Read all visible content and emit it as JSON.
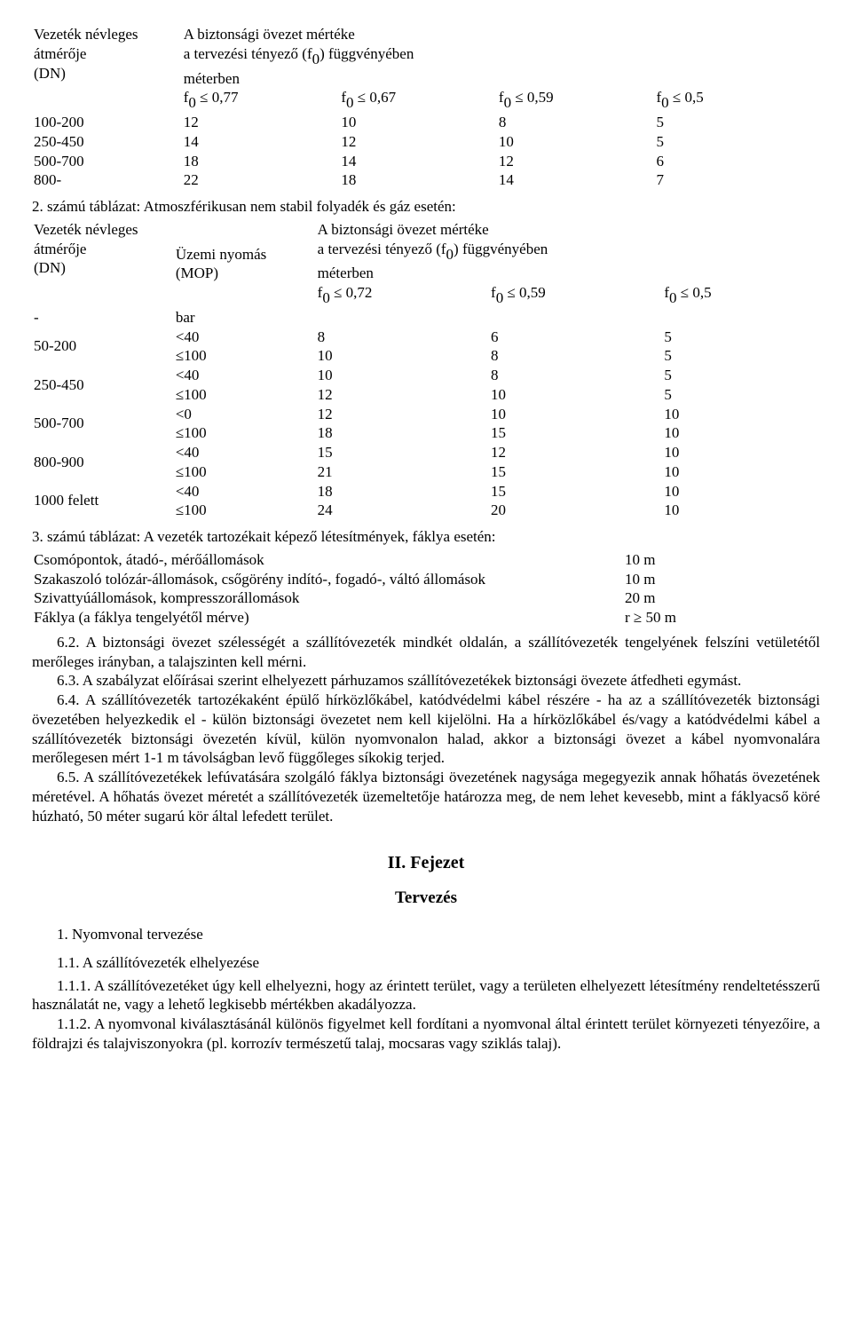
{
  "table1": {
    "header_col1_l1": "Vezeték névleges",
    "header_col1_l2": "átmérője",
    "header_col1_l3": "(DN)",
    "header_right_l1": "A biztonsági övezet mértéke",
    "header_right_l2_a": "a tervezési tényező (f",
    "header_right_l2_b": ") függvényében",
    "header_right_l3": "méterben",
    "colA_a": "f",
    "colA_b": " ≤ 0,77",
    "colB_a": "f",
    "colB_b": " ≤ 0,67",
    "colC_a": "f",
    "colC_b": " ≤ 0,59",
    "colD_a": "f",
    "colD_b": " ≤ 0,5",
    "rows": [
      {
        "dn": "100-200",
        "a": "12",
        "b": "10",
        "c": "8",
        "d": "5"
      },
      {
        "dn": "250-450",
        "a": "14",
        "b": "12",
        "c": "10",
        "d": "5"
      },
      {
        "dn": "500-700",
        "a": "18",
        "b": "14",
        "c": "12",
        "d": "6"
      },
      {
        "dn": "800-",
        "a": "22",
        "b": "18",
        "c": "14",
        "d": "7"
      }
    ]
  },
  "caption2": "2. számú táblázat: Atmoszférikusan nem stabil folyadék és gáz esetén:",
  "table2": {
    "h_col1_l1": "Vezeték névleges",
    "h_col1_l2": "átmérője",
    "h_col1_l3": "(DN)",
    "h_col2_l1": "Üzemi nyomás",
    "h_col2_l2": "(MOP)",
    "h_right_l1": "A biztonsági övezet mértéke",
    "h_right_l2_a": "a tervezési tényező (f",
    "h_right_l2_b": ") függvényében",
    "h_right_l3": "méterben",
    "unit_dash": "-",
    "unit_bar": "bar",
    "cA_a": "f",
    "cA_b": " ≤ 0,72",
    "cB_a": "f",
    "cB_b": " ≤ 0,59",
    "cC_a": "f",
    "cC_b": " ≤ 0,5",
    "rows": [
      {
        "dn": "50-200",
        "p1": "<40",
        "a1": "8",
        "b1": "6",
        "c1": "5",
        "p2": "≤100",
        "a2": "10",
        "b2": "8",
        "c2": "5"
      },
      {
        "dn": "250-450",
        "p1": "<40",
        "a1": "10",
        "b1": "8",
        "c1": "5",
        "p2": "≤100",
        "a2": "12",
        "b2": "10",
        "c2": "5"
      },
      {
        "dn": "500-700",
        "p1": "<0",
        "a1": "12",
        "b1": "10",
        "c1": "10",
        "p2": "≤100",
        "a2": "18",
        "b2": "15",
        "c2": "10"
      },
      {
        "dn": "800-900",
        "p1": "<40",
        "a1": "15",
        "b1": "12",
        "c1": "10",
        "p2": "≤100",
        "a2": "21",
        "b2": "15",
        "c2": "10"
      },
      {
        "dn": "1000 felett",
        "p1": "<40",
        "a1": "18",
        "b1": "15",
        "c1": "10",
        "p2": "≤100",
        "a2": "24",
        "b2": "20",
        "c2": "10"
      }
    ]
  },
  "caption3": "3. számú táblázat: A vezeték tartozékait képező létesítmények, fáklya esetén:",
  "table3": {
    "rows": [
      {
        "label": "Csomópontok, átadó-, mérőállomások",
        "val": "10 m"
      },
      {
        "label": "Szakaszoló tolózár-állomások, csőgörény indító-, fogadó-, váltó állomások",
        "val": "10 m"
      },
      {
        "label": "Szivattyúállomások, kompresszorállomások",
        "val": "20 m"
      },
      {
        "label": "Fáklya (a fáklya tengelyétől mérve)",
        "val": "r ≥ 50 m"
      }
    ]
  },
  "p62": "6.2. A biztonsági övezet szélességét a szállítóvezeték mindkét oldalán, a szállítóvezeték tengelyének felszíni vetületétől merőleges irányban, a talajszinten kell mérni.",
  "p63": "6.3. A szabályzat előírásai szerint elhelyezett párhuzamos szállítóvezetékek biztonsági övezete átfedheti egymást.",
  "p64": "6.4. A szállítóvezeték tartozékaként épülő hírközlőkábel, katódvédelmi kábel részére - ha az a szállítóvezeték biztonsági övezetében helyezkedik el - külön biztonsági övezetet nem kell kijelölni. Ha a hírközlőkábel és/vagy a katódvédelmi kábel a szállítóvezeték biztonsági övezetén kívül, külön nyomvonalon halad, akkor a biztonsági övezet a kábel nyomvonalára merőlegesen mért 1-1 m távolságban levő függőleges síkokig terjed.",
  "p65": "6.5. A szállítóvezetékek lefúvatására szolgáló fáklya biztonsági övezetének nagysága megegyezik annak hőhatás övezetének méretével. A hőhatás övezet méretét a szállítóvezeték üzemeltetője határozza meg, de nem lehet kevesebb, mint a fáklyacső köré húzható, 50 méter sugarú kör által lefedett terület.",
  "chapter": "II. Fejezet",
  "section": "Tervezés",
  "s1": "1. Nyomvonal tervezése",
  "s11": "1.1. A szállítóvezeték elhelyezése",
  "p111": "1.1.1. A szállítóvezetéket úgy kell elhelyezni, hogy az érintett terület, vagy a területen elhelyezett létesítmény rendeltetésszerű használatát ne, vagy a lehető legkisebb mértékben akadályozza.",
  "p112": "1.1.2. A nyomvonal kiválasztásánál különös figyelmet kell fordítani a nyomvonal által érintett terület környezeti tényezőire, a földrajzi és talajviszonyokra (pl. korrozív természetű talaj, mocsaras vagy sziklás talaj).",
  "zero": "0"
}
